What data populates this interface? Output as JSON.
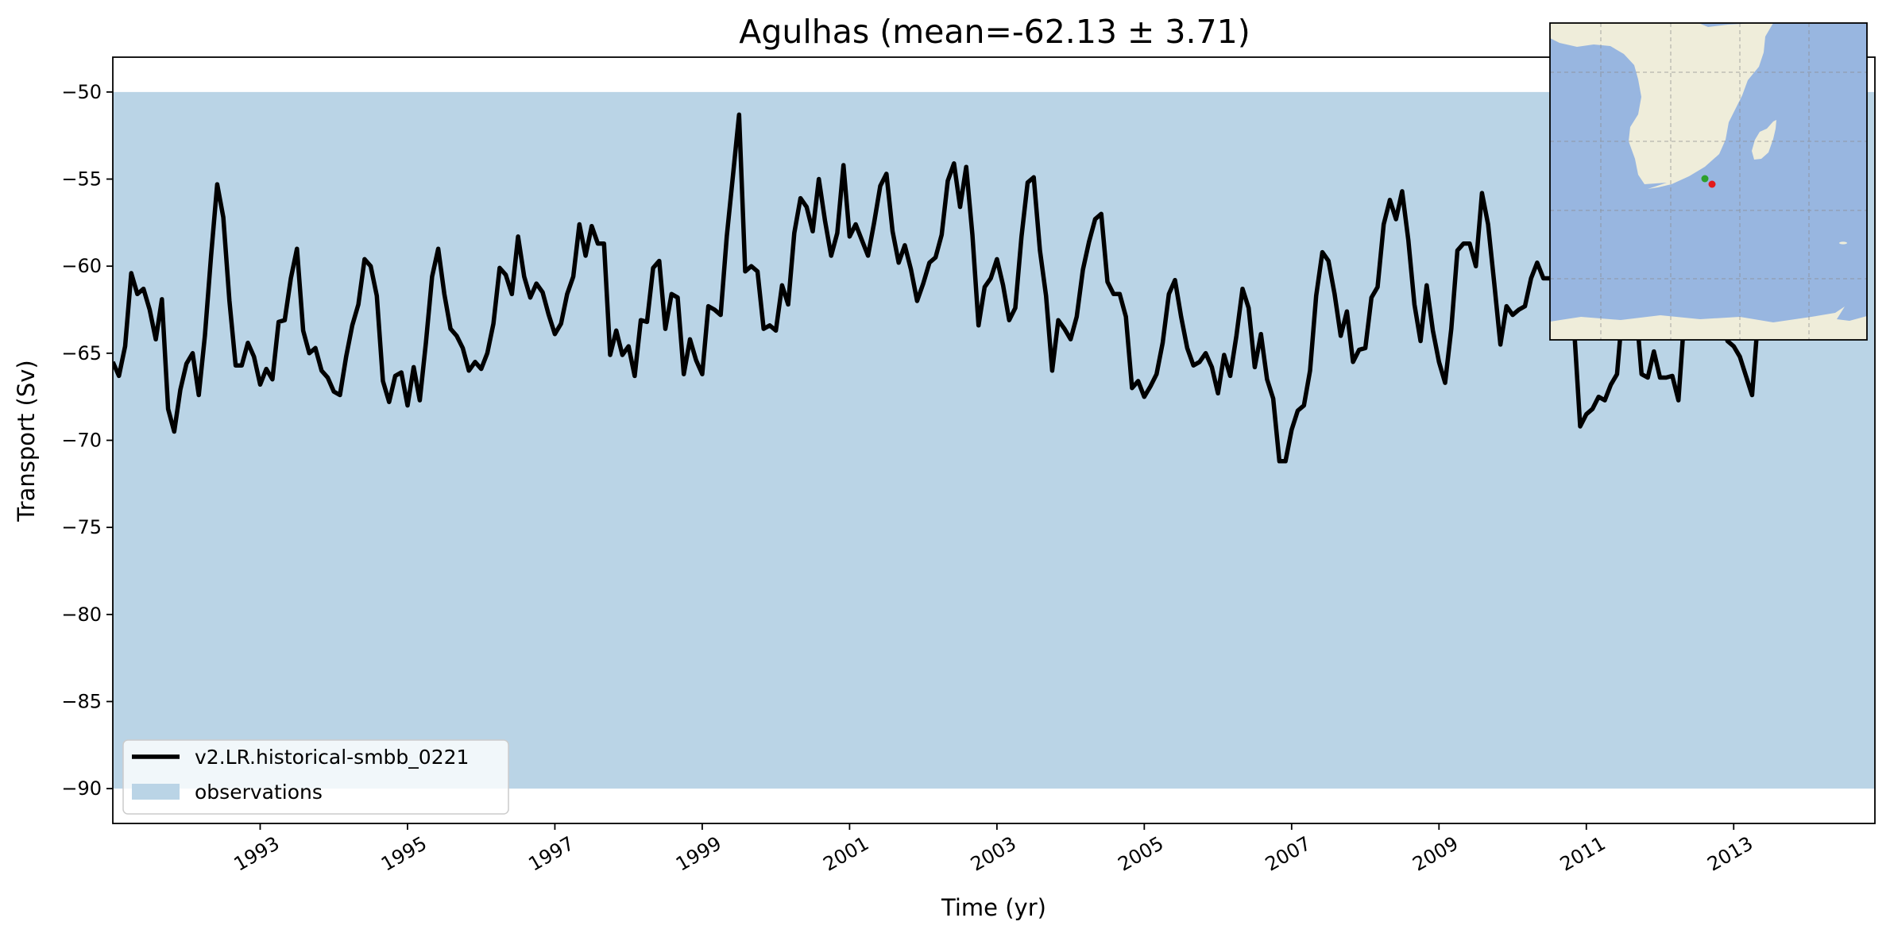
{
  "chart_data": {
    "type": "line",
    "title": "Agulhas (mean=-62.13 ± 3.71)",
    "xlabel": "Time (yr)",
    "ylabel": "Transport (Sv)",
    "xlim": [
      "1991-01",
      "2014-12"
    ],
    "ylim": [
      -92,
      -48
    ],
    "x_ticks": [
      "1993",
      "1995",
      "1997",
      "1999",
      "2001",
      "2003",
      "2005",
      "2007",
      "2009",
      "2011",
      "2013"
    ],
    "y_ticks": [
      "−90",
      "−85",
      "−80",
      "−75",
      "−70",
      "−65",
      "−60",
      "−55",
      "−50"
    ],
    "grid": false,
    "legend_position": "lower-left",
    "observations": {
      "name": "observations",
      "min": -90,
      "max": -50,
      "color": "#bad4e6"
    },
    "series": [
      {
        "name": "v2.LR.historical-smbb_0221",
        "color": "#000000",
        "start": "1991-01",
        "frequency": "monthly",
        "values": [
          -65.5,
          -66.3,
          -64.6,
          -60.4,
          -61.6,
          -61.3,
          -62.5,
          -64.2,
          -61.9,
          -68.2,
          -69.5,
          -67.1,
          -65.6,
          -65.0,
          -67.4,
          -64.0,
          -59.4,
          -55.3,
          -57.2,
          -62.0,
          -65.7,
          -65.7,
          -64.4,
          -65.2,
          -66.8,
          -65.9,
          -66.5,
          -63.2,
          -63.1,
          -60.7,
          -59.0,
          -63.7,
          -65.0,
          -64.7,
          -66.0,
          -66.4,
          -67.2,
          -67.4,
          -65.2,
          -63.4,
          -62.2,
          -59.6,
          -60.0,
          -61.7,
          -66.6,
          -67.8,
          -66.3,
          -66.1,
          -68.0,
          -65.8,
          -67.7,
          -64.4,
          -60.6,
          -59.0,
          -61.6,
          -63.6,
          -64.0,
          -64.7,
          -66.0,
          -65.5,
          -65.9,
          -65.0,
          -63.3,
          -60.1,
          -60.5,
          -61.6,
          -58.3,
          -60.6,
          -61.8,
          -61.0,
          -61.5,
          -62.8,
          -63.9,
          -63.3,
          -61.6,
          -60.6,
          -57.6,
          -59.4,
          -57.7,
          -58.7,
          -58.7,
          -65.1,
          -63.7,
          -65.1,
          -64.6,
          -66.3,
          -63.1,
          -63.2,
          -60.1,
          -59.7,
          -63.6,
          -61.6,
          -61.8,
          -66.2,
          -64.2,
          -65.4,
          -66.2,
          -62.3,
          -62.5,
          -62.8,
          -58.3,
          -54.8,
          -51.3,
          -60.3,
          -60.0,
          -60.3,
          -63.6,
          -63.4,
          -63.7,
          -61.1,
          -62.2,
          -58.1,
          -56.1,
          -56.6,
          -58.0,
          -55.0,
          -57.4,
          -59.4,
          -58.1,
          -54.2,
          -58.3,
          -57.6,
          -58.5,
          -59.4,
          -57.5,
          -55.4,
          -54.7,
          -58.0,
          -59.8,
          -58.8,
          -60.2,
          -62.0,
          -61.0,
          -59.8,
          -59.5,
          -58.2,
          -55.1,
          -54.1,
          -56.6,
          -54.3,
          -58.2,
          -63.4,
          -61.2,
          -60.7,
          -59.6,
          -61.1,
          -63.1,
          -62.4,
          -58.3,
          -55.2,
          -54.9,
          -59.1,
          -61.7,
          -66.0,
          -63.1,
          -63.6,
          -64.2,
          -62.9,
          -60.2,
          -58.6,
          -57.3,
          -57.0,
          -60.9,
          -61.6,
          -61.6,
          -62.9,
          -67.0,
          -66.6,
          -67.5,
          -66.9,
          -66.2,
          -64.4,
          -61.6,
          -60.8,
          -62.9,
          -64.7,
          -65.7,
          -65.5,
          -65.0,
          -65.8,
          -67.3,
          -65.1,
          -66.3,
          -64.0,
          -61.3,
          -62.4,
          -65.8,
          -63.9,
          -66.5,
          -67.6,
          -71.2,
          -71.2,
          -69.4,
          -68.3,
          -68.0,
          -66.0,
          -61.7,
          -59.2,
          -59.7,
          -61.6,
          -64.0,
          -62.6,
          -65.5,
          -64.8,
          -64.7,
          -61.8,
          -61.2,
          -57.6,
          -56.2,
          -57.3,
          -55.7,
          -58.5,
          -62.2,
          -64.3,
          -61.1,
          -63.7,
          -65.5,
          -66.7,
          -63.6,
          -59.1,
          -58.7,
          -58.7,
          -60.0,
          -55.8,
          -57.6,
          -61.0,
          -64.5,
          -62.3,
          -62.8,
          -62.5,
          -62.3,
          -60.7,
          -59.8,
          -60.7,
          -60.7,
          -60.6,
          -60.5,
          -60.6,
          -63.5,
          -69.2,
          -68.5,
          -68.2,
          -67.5,
          -67.7,
          -66.8,
          -66.2,
          -62.1,
          -58.2,
          -62.0,
          -66.2,
          -66.4,
          -64.9,
          -66.4,
          -66.4,
          -66.3,
          -67.7,
          -62.7,
          -58.9,
          -59.3,
          -60.5,
          -61.7,
          -62.2,
          -63.2,
          -64.3,
          -64.6,
          -65.2,
          -66.3,
          -67.4,
          -62.8,
          -58.0,
          -58.3,
          -60.0,
          -59.0,
          -58.3,
          -59.5,
          -58.8,
          -58.0,
          -58.3,
          -59.1
        ]
      }
    ],
    "inset_map": {
      "land_color": "#efedda",
      "ocean_color": "#98b6e0",
      "marker_colors": [
        "#2ca02c",
        "#e31a1c"
      ]
    }
  }
}
